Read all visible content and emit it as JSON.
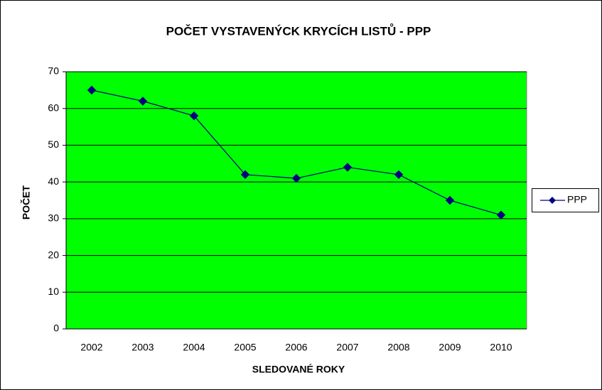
{
  "chart_data": {
    "type": "line",
    "title": "POČET VYSTAVENÝCK KRYCÍCH LISTŮ -  PPP",
    "xlabel": "SLEDOVANÉ ROKY",
    "ylabel": "POČET",
    "categories": [
      "2002",
      "2003",
      "2004",
      "2005",
      "2006",
      "2007",
      "2008",
      "2009",
      "2010"
    ],
    "series": [
      {
        "name": "PPP",
        "color": "#000080",
        "values": [
          65,
          62,
          58,
          42,
          41,
          44,
          42,
          35,
          31
        ]
      }
    ],
    "ylim": [
      0,
      70
    ],
    "yticks": [
      0,
      10,
      20,
      30,
      40,
      50,
      60,
      70
    ],
    "grid": true,
    "plot_background": "#00ff00",
    "legend": "right"
  }
}
